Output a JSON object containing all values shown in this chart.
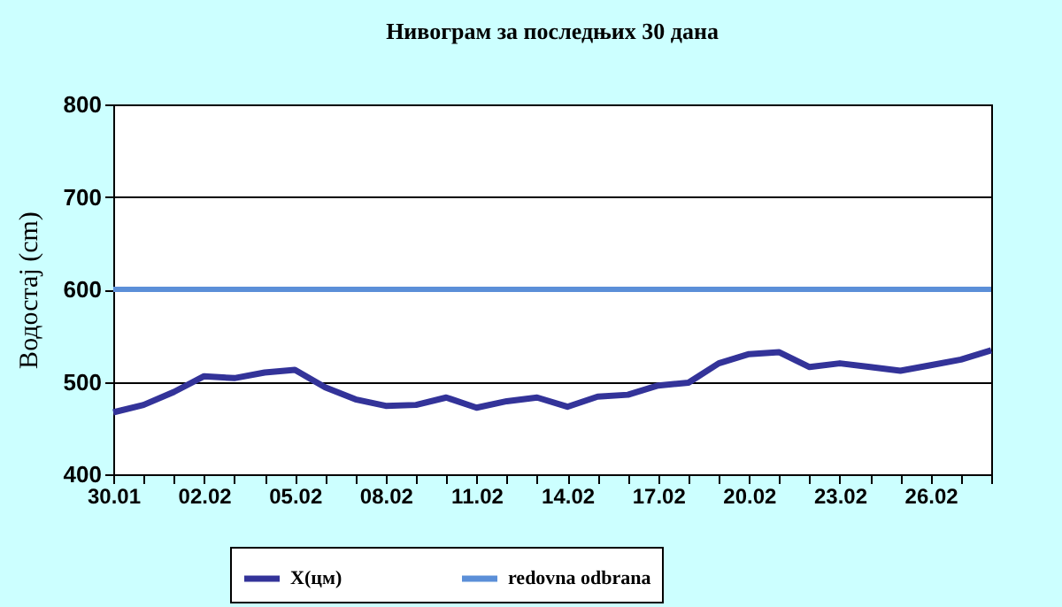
{
  "chart_data": {
    "type": "line",
    "title": "Нивограм за последњих 30 дана",
    "ylabel": "Водостај (cm)",
    "categories": [
      "30.01",
      null,
      null,
      "02.02",
      null,
      null,
      "05.02",
      null,
      null,
      "08.02",
      null,
      null,
      "11.02",
      null,
      null,
      "14.02",
      null,
      null,
      "17.02",
      null,
      null,
      "20.02",
      null,
      null,
      "23.02",
      null,
      null,
      "26.02",
      null,
      null
    ],
    "series": [
      {
        "name": "X(цм)",
        "color": "#333399",
        "values": [
          467,
          475,
          489,
          506,
          504,
          510,
          513,
          494,
          481,
          474,
          475,
          483,
          472,
          479,
          483,
          473,
          484,
          486,
          496,
          499,
          520,
          530,
          532,
          516,
          520,
          516,
          512,
          518,
          524,
          534
        ]
      }
    ],
    "ylim": [
      400,
      800
    ],
    "yticks": [
      400,
      500,
      600,
      700,
      800
    ],
    "grid": "y",
    "legend": "bottom",
    "marker": "none",
    "line_style": "solid",
    "ref_lines": [
      {
        "axis": "y",
        "value": 600,
        "label": "redovna odbrana",
        "color": "#5b8fd8"
      }
    ]
  }
}
